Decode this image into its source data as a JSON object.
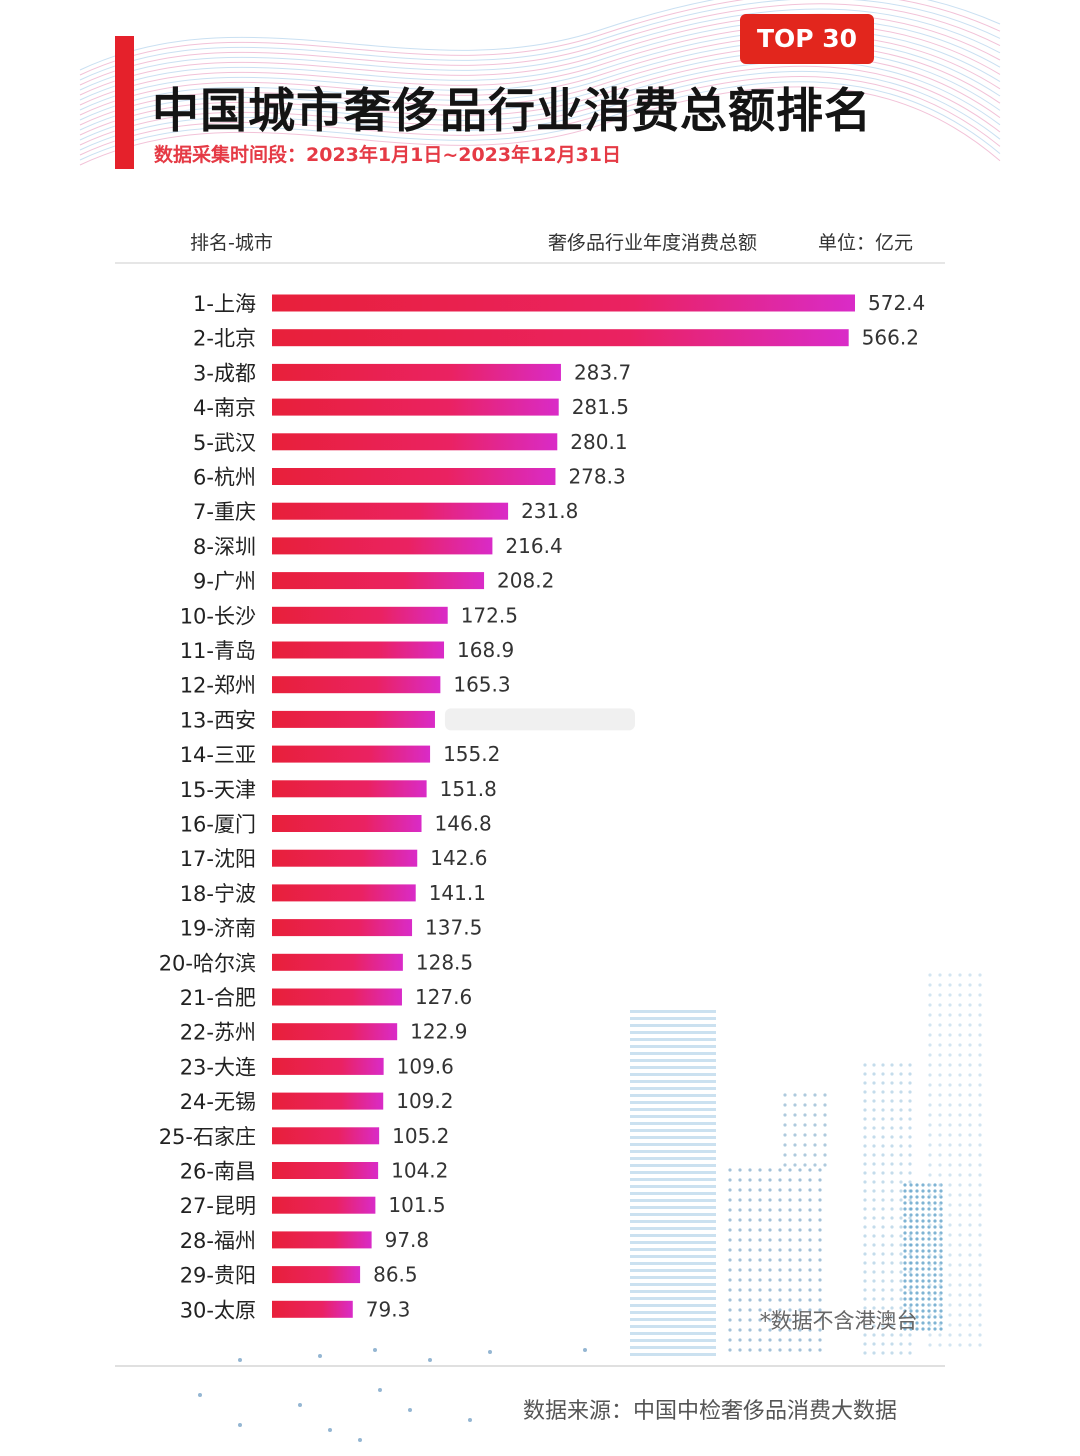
{
  "header": {
    "badge": "TOP 30",
    "title": "中国城市奢侈品行业消费总额排名",
    "period": "数据采集时间段：2023年1月1日~2023年12月31日",
    "col_left": "排名-城市",
    "col_right": "奢侈品行业年度消费总额",
    "unit": "单位：亿元"
  },
  "footer": {
    "note": "*数据不含港澳台",
    "source": "数据来源：中国中检奢侈品消费大数据"
  },
  "colors": {
    "bar_start": "#e8203a",
    "bar_end": "#d92bc8",
    "accent": "#e5212b"
  },
  "chart_data": {
    "type": "bar",
    "orientation": "horizontal",
    "title": "中国城市奢侈品行业消费总额排名",
    "categories": [
      "1-上海",
      "2-北京",
      "3-成都",
      "4-南京",
      "5-武汉",
      "6-杭州",
      "7-重庆",
      "8-深圳",
      "9-广州",
      "10-长沙",
      "11-青岛",
      "12-郑州",
      "13-西安",
      "14-三亚",
      "15-天津",
      "16-厦门",
      "17-沈阳",
      "18-宁波",
      "19-济南",
      "20-哈尔滨",
      "21-合肥",
      "22-苏州",
      "23-大连",
      "24-无锡",
      "25-石家庄",
      "26-南昌",
      "27-昆明",
      "28-福州",
      "29-贵阳",
      "30-太原"
    ],
    "values": [
      572.4,
      566.2,
      283.7,
      281.5,
      280.1,
      278.3,
      231.8,
      216.4,
      208.2,
      172.5,
      168.9,
      165.3,
      160.0,
      155.2,
      151.8,
      146.8,
      142.6,
      141.1,
      137.5,
      128.5,
      127.6,
      122.9,
      109.6,
      109.2,
      105.2,
      104.2,
      101.5,
      97.8,
      86.5,
      79.3
    ],
    "value_labels": [
      "572.4",
      "566.2",
      "283.7",
      "281.5",
      "280.1",
      "278.3",
      "231.8",
      "216.4",
      "208.2",
      "172.5",
      "168.9",
      "165.3",
      "",
      "155.2",
      "151.8",
      "146.8",
      "142.6",
      "141.1",
      "137.5",
      "128.5",
      "127.6",
      "122.9",
      "109.6",
      "109.2",
      "105.2",
      "104.2",
      "101.5",
      "97.8",
      "86.5",
      "79.3"
    ],
    "xlim": [
      0,
      572.4
    ],
    "grid": false,
    "legend": "none"
  }
}
